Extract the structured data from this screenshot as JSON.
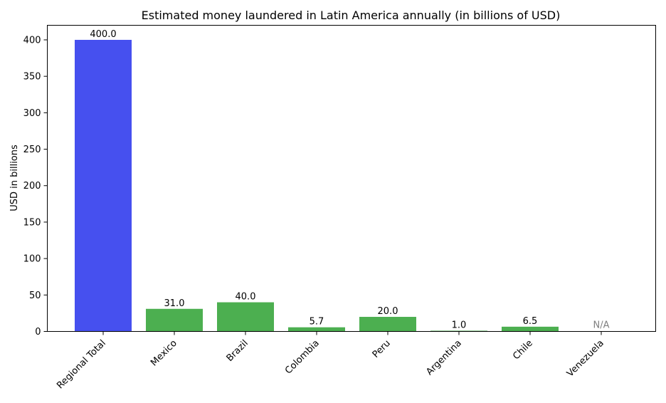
{
  "chart_data": {
    "type": "bar",
    "title": "Estimated money laundered in Latin America annually (in billions of USD)",
    "xlabel": "",
    "ylabel": "USD in billions",
    "categories": [
      "Regional Total",
      "Mexico",
      "Brazil",
      "Colombia",
      "Peru",
      "Argentina",
      "Chile",
      "Venezuela"
    ],
    "values": [
      400.0,
      31.0,
      40.0,
      5.7,
      20.0,
      1.0,
      6.5,
      null
    ],
    "data_labels": [
      "400.0",
      "31.0",
      "40.0",
      "5.7",
      "20.0",
      "1.0",
      "6.5",
      "N/A"
    ],
    "ylim": [
      0,
      420
    ],
    "yticks": [
      0,
      50,
      100,
      150,
      200,
      250,
      300,
      350,
      400
    ],
    "grid": false,
    "colors": {
      "regional": "#4650ef",
      "country": "#4caf50",
      "na_label": "#808080"
    }
  }
}
